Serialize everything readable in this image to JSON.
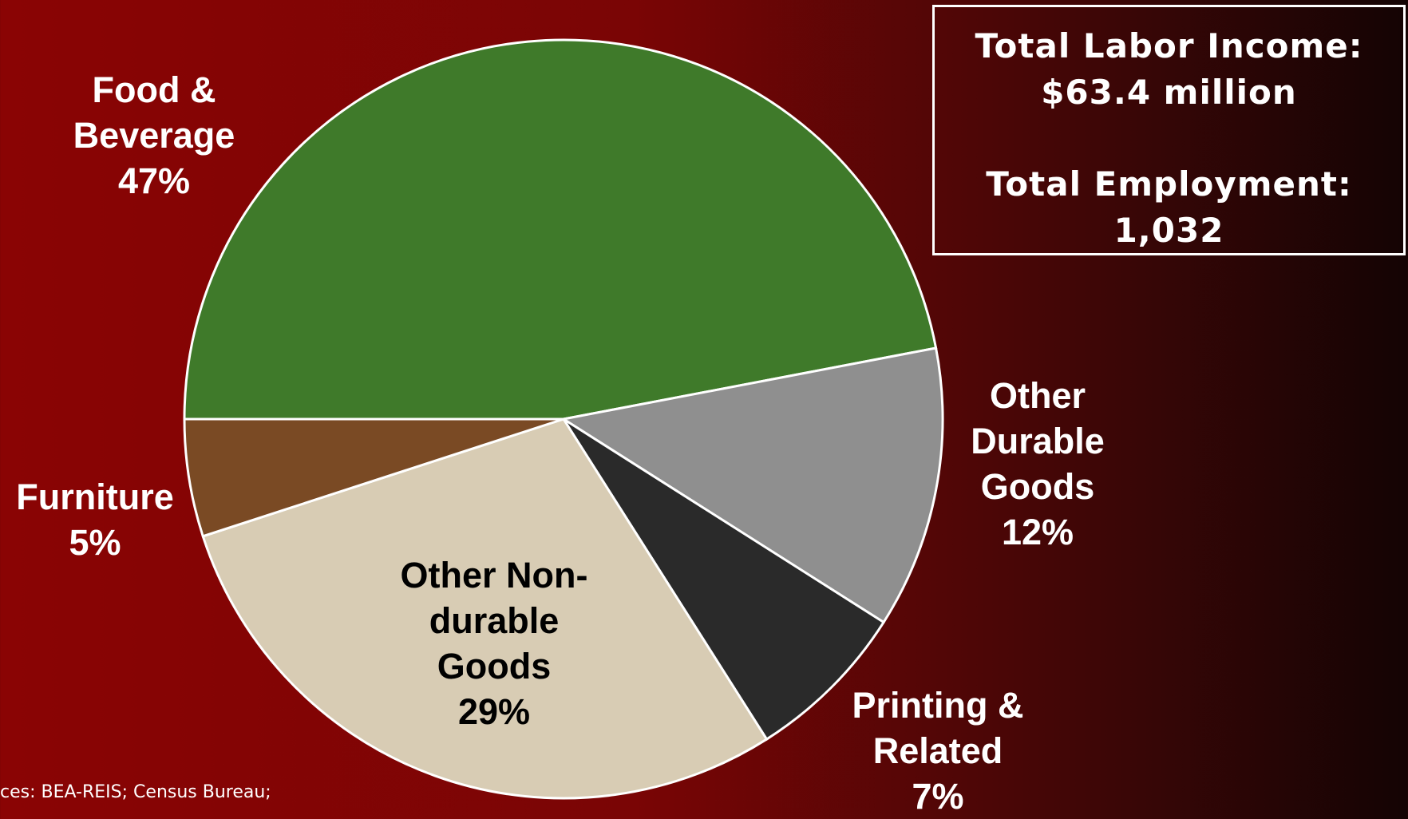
{
  "chart_data": {
    "type": "pie",
    "categories": [
      "Food & Beverage",
      "Other Durable Goods",
      "Printing & Related",
      "Other Non-durable Goods",
      "Furniture"
    ],
    "values": [
      47,
      12,
      7,
      29,
      5
    ],
    "value_labels": [
      "47%",
      "12%",
      "7%",
      "29%",
      "5%"
    ],
    "colors": [
      "#3f7a2a",
      "#8f8f8f",
      "#2a2a2a",
      "#d8ccb4",
      "#7a4a24"
    ]
  },
  "info": [
    "Total Labor Income:",
    "$63.4 million",
    "Total Employment:",
    "1,032"
  ],
  "source": "ces: BEA-REIS; Census Bureau;"
}
